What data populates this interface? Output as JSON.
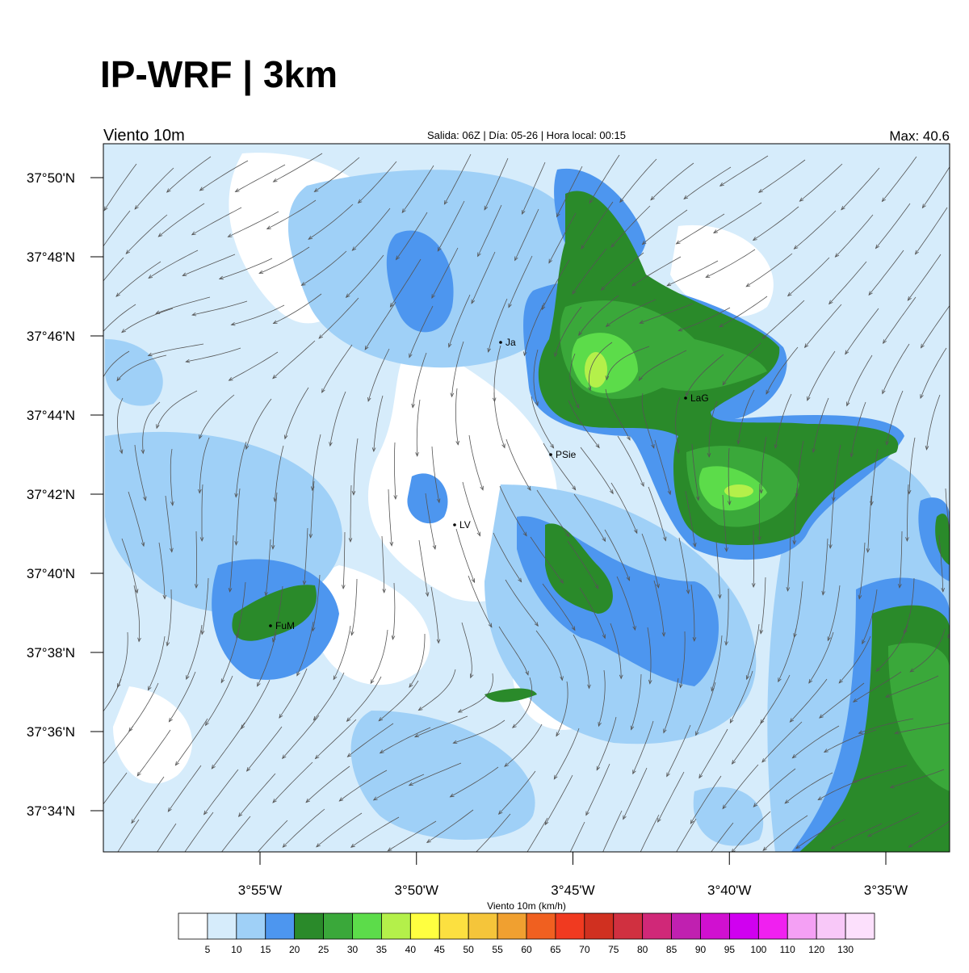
{
  "header": {
    "title": "IP-WRF | 3km"
  },
  "panel": {
    "left": "Viento 10m",
    "center": "Salida: 06Z | Día: 05-26 | Hora local: 00:15",
    "right": "Max: 40.6"
  },
  "lat_ticks": [
    "37°50'N",
    "37°48'N",
    "37°46'N",
    "37°44'N",
    "37°42'N",
    "37°40'N",
    "37°38'N",
    "37°36'N",
    "37°34'N"
  ],
  "lon_ticks": [
    "3°55'W",
    "3°50'W",
    "3°45'W",
    "3°40'W",
    "3°35'W"
  ],
  "stations": [
    "Ja",
    "LaG",
    "PSie",
    "LV",
    "FuM"
  ],
  "colorbar": {
    "title": "Viento 10m (km/h)",
    "labels": [
      "5",
      "10",
      "15",
      "20",
      "25",
      "30",
      "35",
      "40",
      "45",
      "50",
      "55",
      "60",
      "65",
      "70",
      "75",
      "80",
      "85",
      "90",
      "95",
      "100",
      "110",
      "120",
      "130"
    ],
    "colors": [
      "#ffffff",
      "#d6ecfb",
      "#9fd0f7",
      "#4d96ef",
      "#2a8a2a",
      "#3aa83a",
      "#5cdc4a",
      "#b4f04a",
      "#ffff40",
      "#fce040",
      "#f5c53a",
      "#f0a030",
      "#f06020",
      "#f03a20",
      "#d03020",
      "#d03040",
      "#d02878",
      "#c020b0",
      "#d010d0",
      "#d000f0",
      "#f020f0",
      "#f4a0f4",
      "#f8c8f8",
      "#fce0fc"
    ]
  }
}
